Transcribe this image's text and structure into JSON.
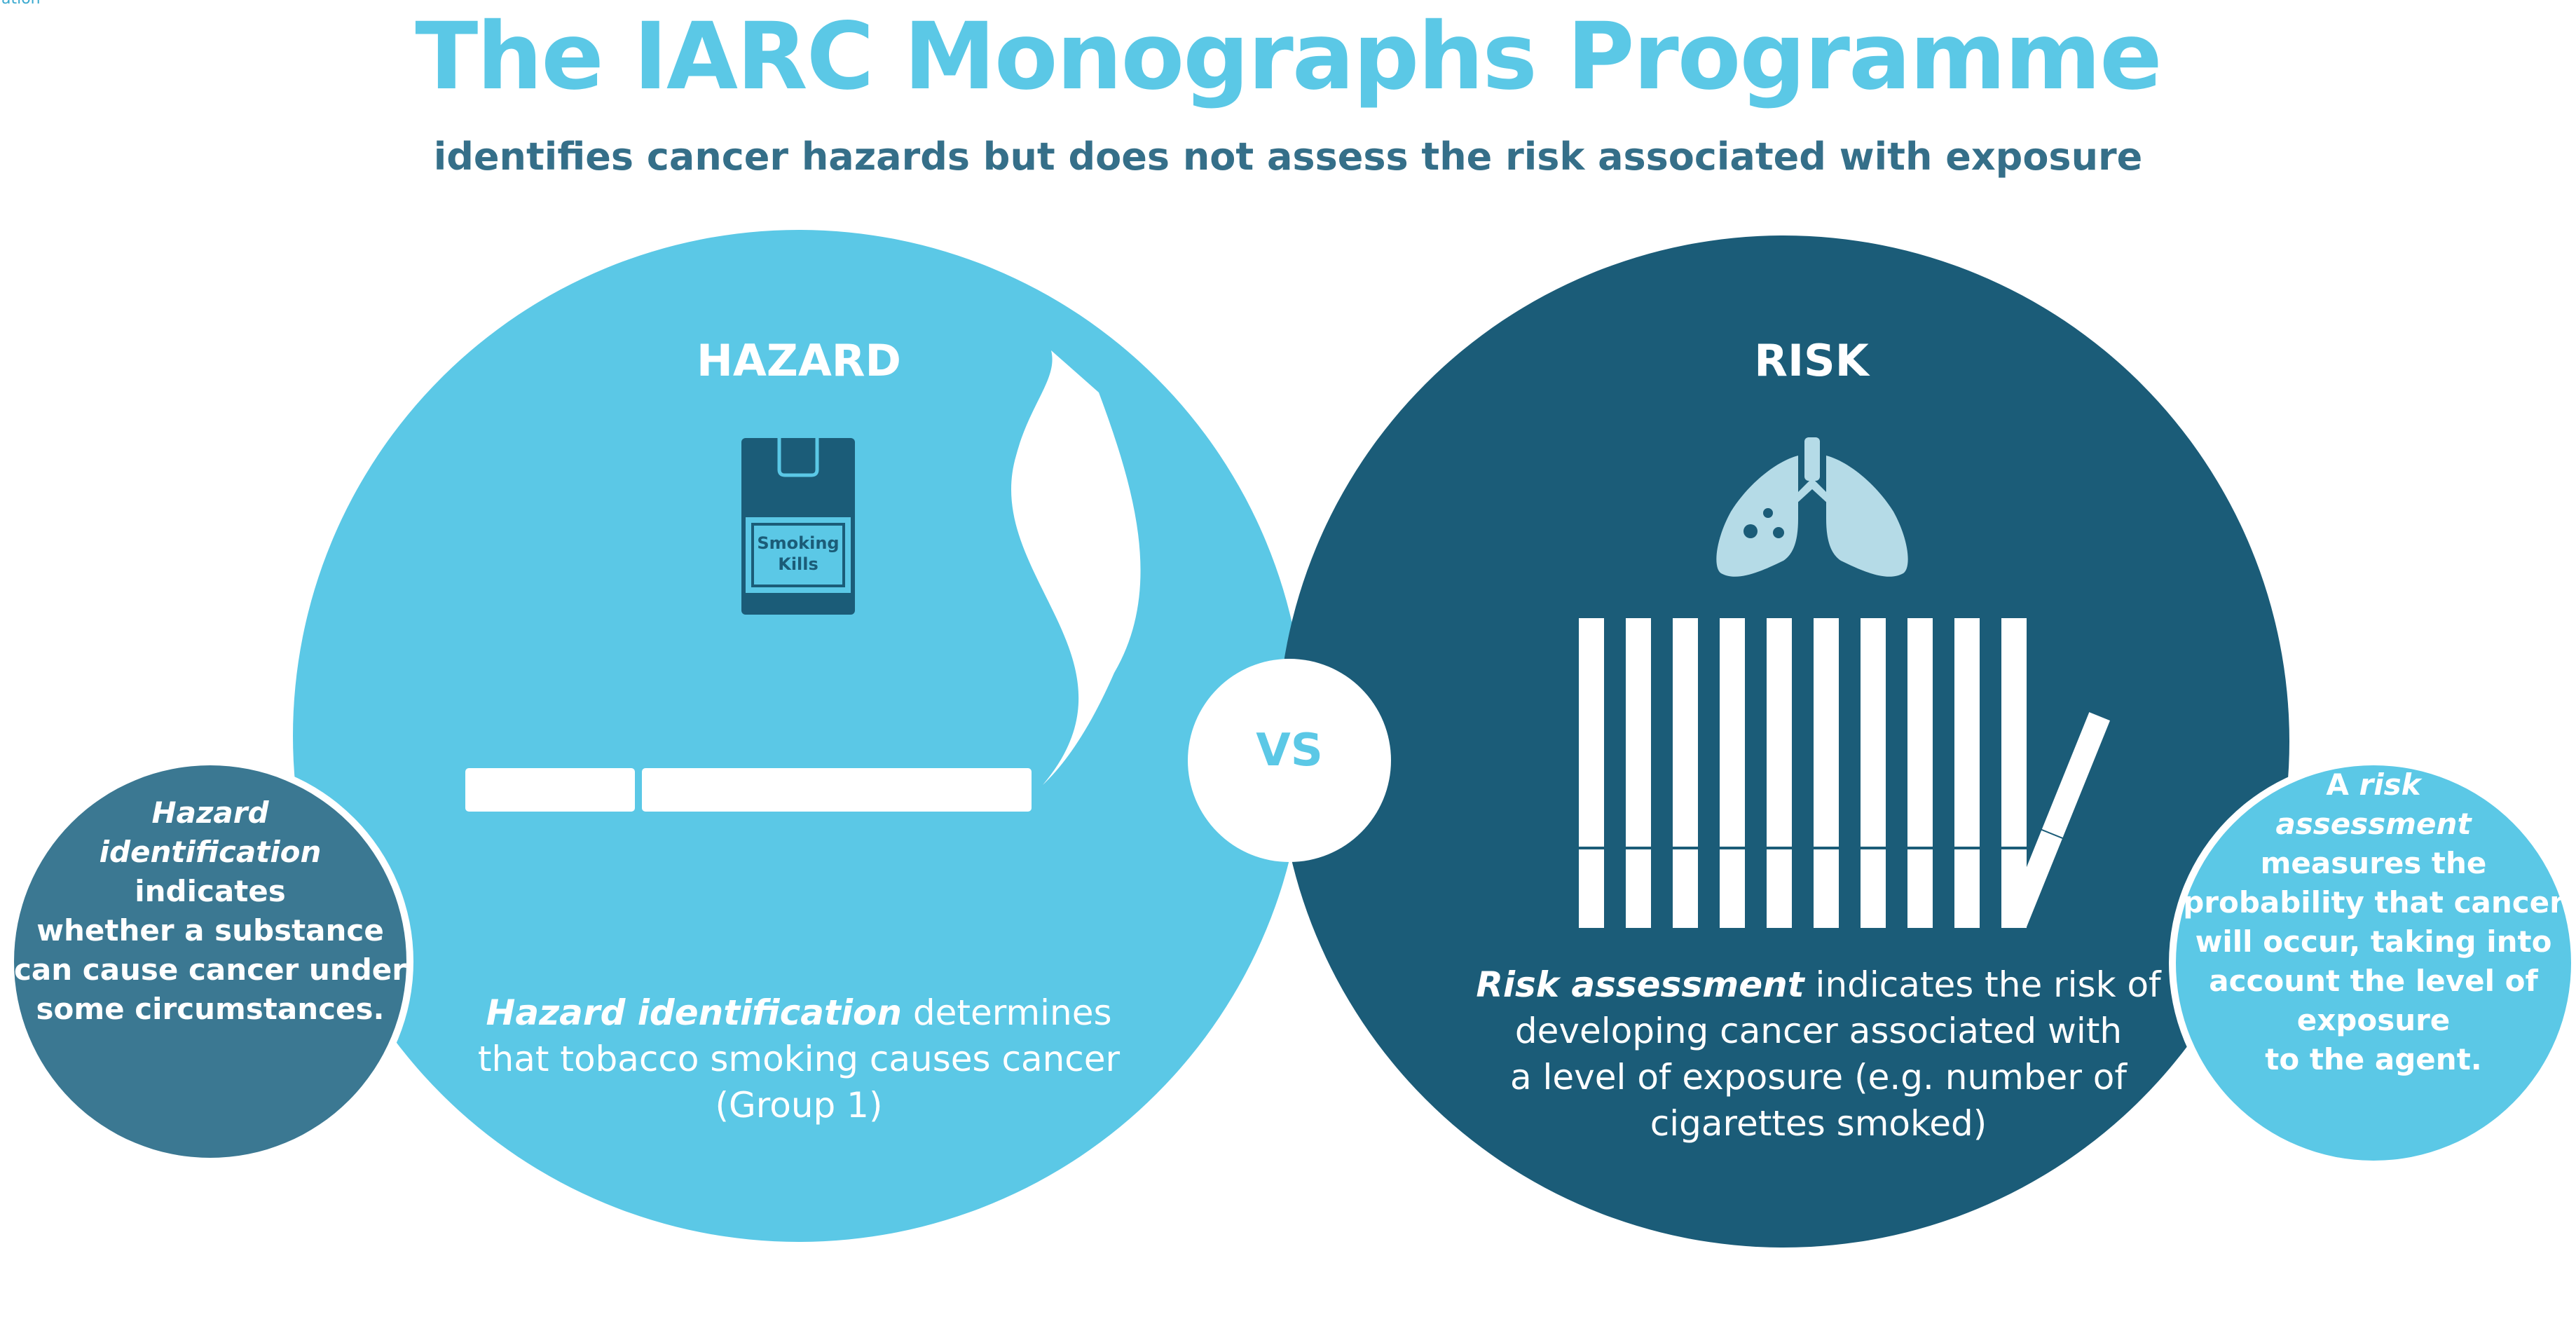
{
  "corner": {
    "text": "ation"
  },
  "header": {
    "title": "The IARC Monographs Programme",
    "subtitle": "identifies cancer hazards but does not assess the risk associated with exposure"
  },
  "hazard": {
    "heading": "HAZARD",
    "pack_label_line1": "Smoking",
    "pack_label_line2": "Kills",
    "caption_em": "Hazard identification",
    "caption_rest": " determines",
    "caption_line2": "that tobacco smoking causes cancer",
    "caption_line3": "(Group 1)"
  },
  "vs": {
    "label": "VS"
  },
  "risk": {
    "heading": "RISK",
    "cigarette_count": 10,
    "caption_em": "Risk assessment",
    "caption_rest": " indicates the risk of",
    "caption_line2": "developing cancer associated with",
    "caption_line3": "a level of exposure (e.g. number of",
    "caption_line4": "cigarettes smoked)"
  },
  "side_left": {
    "em_line1": "Hazard",
    "em_line2": "identification",
    "line3": "indicates",
    "line4": "whether a substance",
    "line5": "can cause cancer under",
    "line6": "some circumstances."
  },
  "side_right": {
    "line1_prefix": "A ",
    "line1_em": "risk",
    "em_line2": "assessment",
    "line3": "measures the",
    "line4": "probability that cancer",
    "line5": "will occur, taking into",
    "line6": "account the level of",
    "line7": "exposure",
    "line8": "to the agent."
  },
  "colors": {
    "light_blue": "#5bc8e6",
    "dark_blue": "#1b5c78",
    "mid_blue": "#3b7892",
    "lung": "#b5dbe7",
    "title": "#5bc8e6",
    "subtitle": "#356f89"
  }
}
